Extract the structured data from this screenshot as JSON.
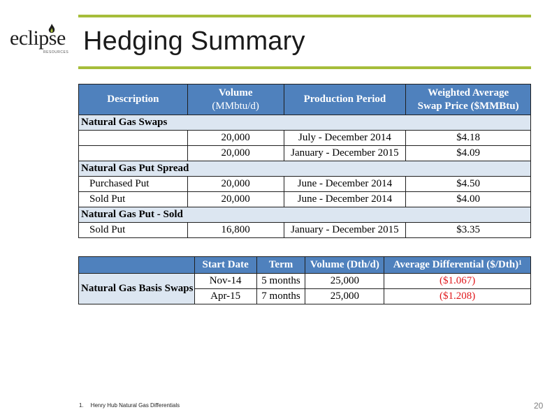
{
  "logo": {
    "word": "eclipse",
    "sub": "RESOURCES"
  },
  "title": "Hedging Summary",
  "hedge_table": {
    "headers": {
      "description": "Description",
      "volume": "Volume",
      "volume_unit": "(MMbtu/d)",
      "period": "Production Period",
      "price_line1": "Weighted Average",
      "price_line2": "Swap Price ($MMBtu)"
    },
    "sections": [
      {
        "label": "Natural Gas Swaps",
        "rows": [
          {
            "description": "",
            "volume": "20,000",
            "period": "July - December 2014",
            "price": "$4.18"
          },
          {
            "description": "",
            "volume": "20,000",
            "period": "January - December 2015",
            "price": "$4.09"
          }
        ]
      },
      {
        "label": "Natural Gas Put Spread",
        "rows": [
          {
            "description": "Purchased Put",
            "volume": "20,000",
            "period": "June - December 2014",
            "price": "$4.50"
          },
          {
            "description": "Sold Put",
            "volume": "20,000",
            "period": "June - December 2014",
            "price": "$4.00"
          }
        ]
      },
      {
        "label": "Natural Gas Put - Sold",
        "rows": [
          {
            "description": "Sold Put",
            "volume": "16,800",
            "period": "January - December 2015",
            "price": "$3.35"
          }
        ]
      }
    ]
  },
  "basis_table": {
    "headers": {
      "start_date": "Start Date",
      "term": "Term",
      "volume": "Volume (Dth/d)",
      "differential": "Average Differential ($/Dth)",
      "differential_sup": "1"
    },
    "row_label": "Natural Gas Basis Swaps",
    "rows": [
      {
        "start_date": "Nov-14",
        "term": "5 months",
        "volume": "25,000",
        "differential": "($1.067)"
      },
      {
        "start_date": "Apr-15",
        "term": "7 months",
        "volume": "25,000",
        "differential": "($1.208)"
      }
    ]
  },
  "footnote": {
    "number": "1.",
    "text": "Henry Hub Natural Gas Differentials"
  },
  "page_number": "20",
  "colors": {
    "accent_green": "#a6bd3a",
    "header_blue": "#4f81bd",
    "section_fill": "#dce6f1",
    "negative_red": "#e0171b"
  }
}
